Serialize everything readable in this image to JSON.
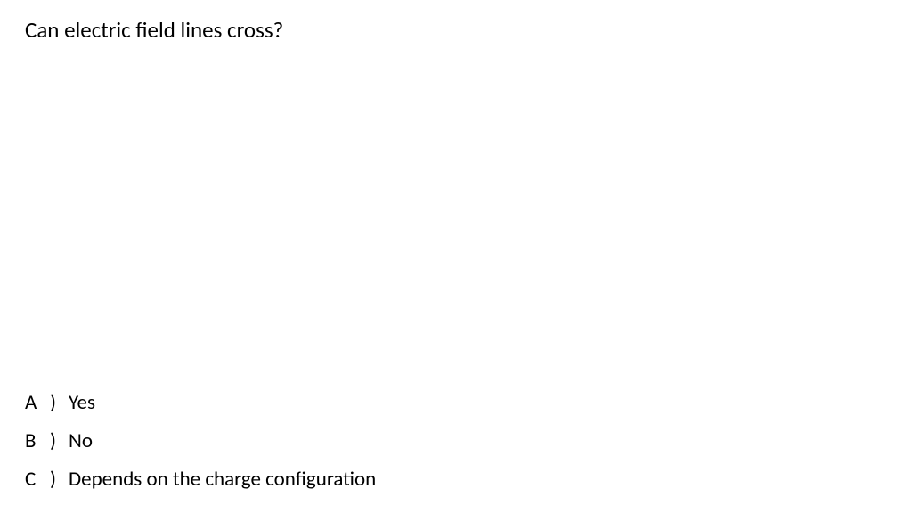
{
  "question": {
    "text": "Can electric field lines cross?",
    "fontsize": 25,
    "color": "#000000"
  },
  "options": [
    {
      "letter": "A",
      "text": "Yes"
    },
    {
      "letter": "B",
      "text": "No"
    },
    {
      "letter": "C",
      "text": "Depends on the charge configuration"
    }
  ],
  "styling": {
    "background_color": "#ffffff",
    "text_color": "#000000",
    "option_fontsize": 23,
    "option_line_spacing": 20,
    "font_family": "Calibri"
  }
}
